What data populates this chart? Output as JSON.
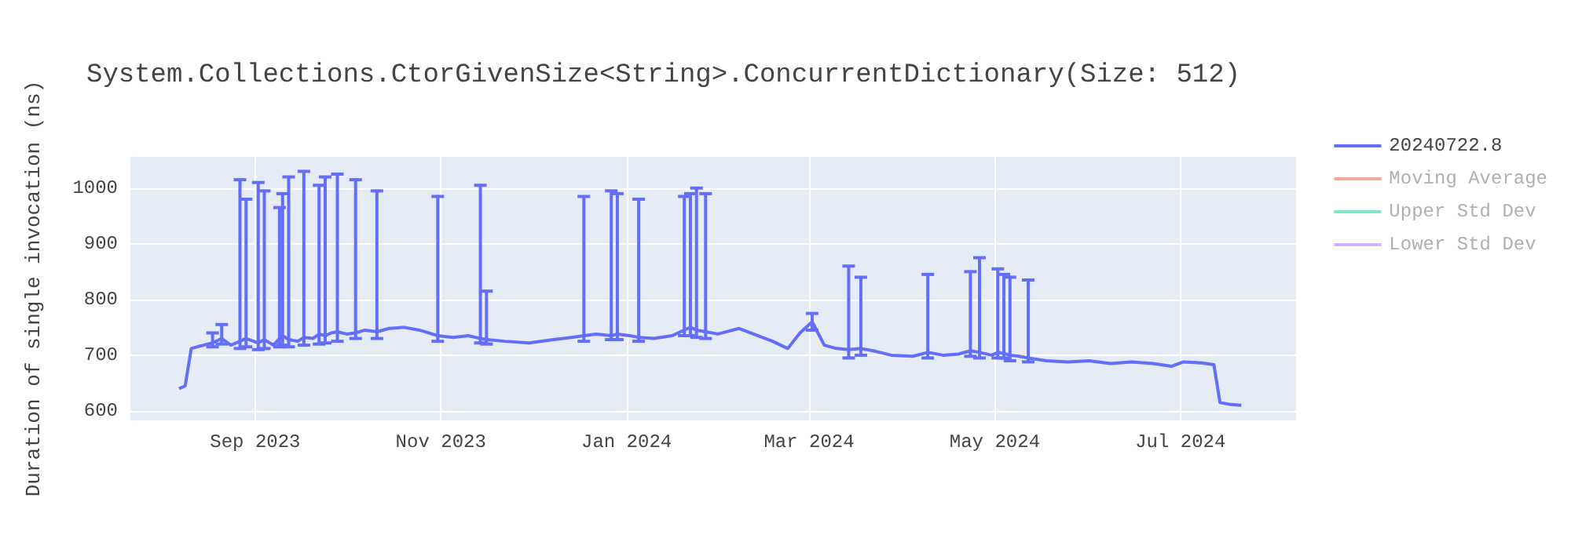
{
  "chart_data": {
    "type": "line",
    "title": "System.Collections.CtorGivenSize<String>.ConcurrentDictionary(Size: 512)",
    "ylabel": "Duration of single invocation (ns)",
    "x": [
      "2023-08-07",
      "2023-08-09",
      "2023-08-11",
      "2023-08-15",
      "2023-08-18",
      "2023-08-21",
      "2023-08-24",
      "2023-08-27",
      "2023-08-29",
      "2023-09-02",
      "2023-09-04",
      "2023-09-07",
      "2023-09-09",
      "2023-09-10",
      "2023-09-12",
      "2023-09-15",
      "2023-09-17",
      "2023-09-20",
      "2023-09-22",
      "2023-09-24",
      "2023-09-26",
      "2023-09-28",
      "2023-10-01",
      "2023-10-04",
      "2023-10-07",
      "2023-10-11",
      "2023-10-15",
      "2023-10-20",
      "2023-10-25",
      "2023-10-31",
      "2023-11-05",
      "2023-11-10",
      "2023-11-14",
      "2023-11-16",
      "2023-11-22",
      "2023-11-30",
      "2023-12-08",
      "2023-12-14",
      "2023-12-18",
      "2023-12-22",
      "2023-12-27",
      "2023-12-29",
      "2024-01-02",
      "2024-01-05",
      "2024-01-10",
      "2024-01-16",
      "2024-01-20",
      "2024-01-22",
      "2024-01-24",
      "2024-01-27",
      "2024-01-31",
      "2024-02-07",
      "2024-02-18",
      "2024-02-23",
      "2024-02-27",
      "2024-03-02",
      "2024-03-06",
      "2024-03-10",
      "2024-03-14",
      "2024-03-18",
      "2024-03-22",
      "2024-03-28",
      "2024-04-04",
      "2024-04-09",
      "2024-04-14",
      "2024-04-19",
      "2024-04-23",
      "2024-04-26",
      "2024-04-30",
      "2024-05-02",
      "2024-05-04",
      "2024-05-06",
      "2024-05-09",
      "2024-05-12",
      "2024-05-18",
      "2024-05-25",
      "2024-06-01",
      "2024-06-08",
      "2024-06-15",
      "2024-06-22",
      "2024-06-28",
      "2024-07-02",
      "2024-07-08",
      "2024-07-12",
      "2024-07-14",
      "2024-07-17",
      "2024-07-21"
    ],
    "series": [
      {
        "name": "20240722.8",
        "color": "#636efa",
        "values": [
          640,
          645,
          712,
          718,
          722,
          730,
          718,
          725,
          730,
          722,
          728,
          718,
          730,
          735,
          728,
          725,
          732,
          730,
          738,
          735,
          740,
          742,
          738,
          740,
          745,
          742,
          748,
          750,
          745,
          735,
          732,
          735,
          730,
          728,
          725,
          722,
          728,
          732,
          735,
          738,
          735,
          738,
          735,
          732,
          730,
          735,
          745,
          750,
          745,
          742,
          738,
          748,
          725,
          712,
          740,
          760,
          718,
          712,
          710,
          712,
          708,
          700,
          698,
          705,
          700,
          702,
          708,
          705,
          700,
          705,
          703,
          700,
          698,
          695,
          690,
          688,
          690,
          685,
          688,
          685,
          680,
          688,
          686,
          683,
          615,
          612,
          610
        ],
        "errors": [
          null,
          null,
          null,
          null,
          [
            715,
            740
          ],
          [
            720,
            755
          ],
          null,
          [
            712,
            1015
          ],
          [
            715,
            980
          ],
          [
            710,
            1010
          ],
          [
            712,
            995
          ],
          null,
          [
            715,
            965
          ],
          [
            718,
            990
          ],
          [
            715,
            1020
          ],
          null,
          [
            718,
            1030
          ],
          null,
          [
            720,
            1005
          ],
          [
            722,
            1020
          ],
          null,
          [
            725,
            1025
          ],
          null,
          [
            730,
            1015
          ],
          null,
          [
            730,
            995
          ],
          null,
          null,
          null,
          [
            725,
            985
          ],
          null,
          null,
          [
            722,
            1005
          ],
          [
            720,
            815
          ],
          null,
          null,
          null,
          null,
          [
            725,
            985
          ],
          null,
          [
            728,
            995
          ],
          [
            728,
            990
          ],
          null,
          [
            725,
            980
          ],
          null,
          null,
          [
            735,
            985
          ],
          [
            735,
            990
          ],
          [
            732,
            1000
          ],
          [
            730,
            990
          ],
          null,
          null,
          null,
          null,
          null,
          [
            745,
            775
          ],
          null,
          null,
          [
            695,
            860
          ],
          [
            700,
            840
          ],
          null,
          null,
          null,
          [
            695,
            845
          ],
          null,
          null,
          [
            698,
            850
          ],
          [
            695,
            875
          ],
          null,
          [
            695,
            855
          ],
          [
            695,
            845
          ],
          [
            690,
            840
          ],
          null,
          [
            688,
            835
          ],
          null,
          null,
          null,
          null,
          null,
          null,
          null,
          null,
          null,
          null,
          null,
          null,
          null
        ]
      },
      {
        "name": "Moving Average",
        "color": "#f4a898",
        "values": [
          null,
          null,
          null,
          null,
          null,
          null,
          null,
          null,
          null,
          null,
          null,
          null,
          null,
          null,
          null,
          null,
          null,
          null,
          null,
          null,
          null,
          null,
          null,
          null,
          null,
          null,
          null,
          null,
          null,
          null,
          null,
          null,
          null,
          null,
          null,
          null,
          null,
          null,
          null,
          null,
          null,
          null,
          null,
          null,
          null,
          null,
          null,
          null,
          null,
          null,
          null,
          null,
          null,
          null,
          null,
          null,
          null,
          null,
          null,
          null,
          null,
          null,
          null,
          null,
          null,
          null,
          null,
          null,
          null,
          null,
          null,
          null,
          null,
          null,
          null,
          null,
          null,
          null,
          null,
          null,
          null,
          null,
          null,
          null,
          null,
          null,
          null
        ]
      },
      {
        "name": "Upper Std Dev",
        "color": "#80e5cb",
        "values": [
          null,
          null,
          null,
          null,
          null,
          null,
          null,
          null,
          null,
          null,
          null,
          null,
          null,
          null,
          null,
          null,
          null,
          null,
          null,
          null,
          null,
          null,
          null,
          null,
          null,
          null,
          null,
          null,
          null,
          null,
          null,
          null,
          null,
          null,
          null,
          null,
          null,
          null,
          null,
          null,
          null,
          null,
          null,
          null,
          null,
          null,
          null,
          null,
          null,
          null,
          null,
          null,
          null,
          null,
          null,
          null,
          null,
          null,
          null,
          null,
          null,
          null,
          null,
          null,
          null,
          null,
          null,
          null,
          null,
          null,
          null,
          null,
          null,
          null,
          null,
          null,
          null,
          null,
          null,
          null,
          null,
          null,
          null,
          null,
          null,
          null,
          null
        ]
      },
      {
        "name": "Lower Std Dev",
        "color": "#d5b1fd",
        "values": [
          null,
          null,
          null,
          null,
          null,
          null,
          null,
          null,
          null,
          null,
          null,
          null,
          null,
          null,
          null,
          null,
          null,
          null,
          null,
          null,
          null,
          null,
          null,
          null,
          null,
          null,
          null,
          null,
          null,
          null,
          null,
          null,
          null,
          null,
          null,
          null,
          null,
          null,
          null,
          null,
          null,
          null,
          null,
          null,
          null,
          null,
          null,
          null,
          null,
          null,
          null,
          null,
          null,
          null,
          null,
          null,
          null,
          null,
          null,
          null,
          null,
          null,
          null,
          null,
          null,
          null,
          null,
          null,
          null,
          null,
          null,
          null,
          null,
          null,
          null,
          null,
          null,
          null,
          null,
          null,
          null,
          null,
          null,
          null,
          null,
          null,
          null
        ]
      }
    ],
    "xlim": [
      "2023-07-22",
      "2024-08-08"
    ],
    "xticks": [
      {
        "value": "2023-09-01",
        "label": "Sep 2023"
      },
      {
        "value": "2023-11-01",
        "label": "Nov 2023"
      },
      {
        "value": "2024-01-01",
        "label": "Jan 2024"
      },
      {
        "value": "2024-03-01",
        "label": "Mar 2024"
      },
      {
        "value": "2024-05-01",
        "label": "May 2024"
      },
      {
        "value": "2024-07-01",
        "label": "Jul 2024"
      }
    ],
    "ylim": [
      583,
      1056
    ],
    "yticks": [
      600,
      700,
      800,
      900,
      1000
    ],
    "grid": true,
    "legend": "top right"
  }
}
